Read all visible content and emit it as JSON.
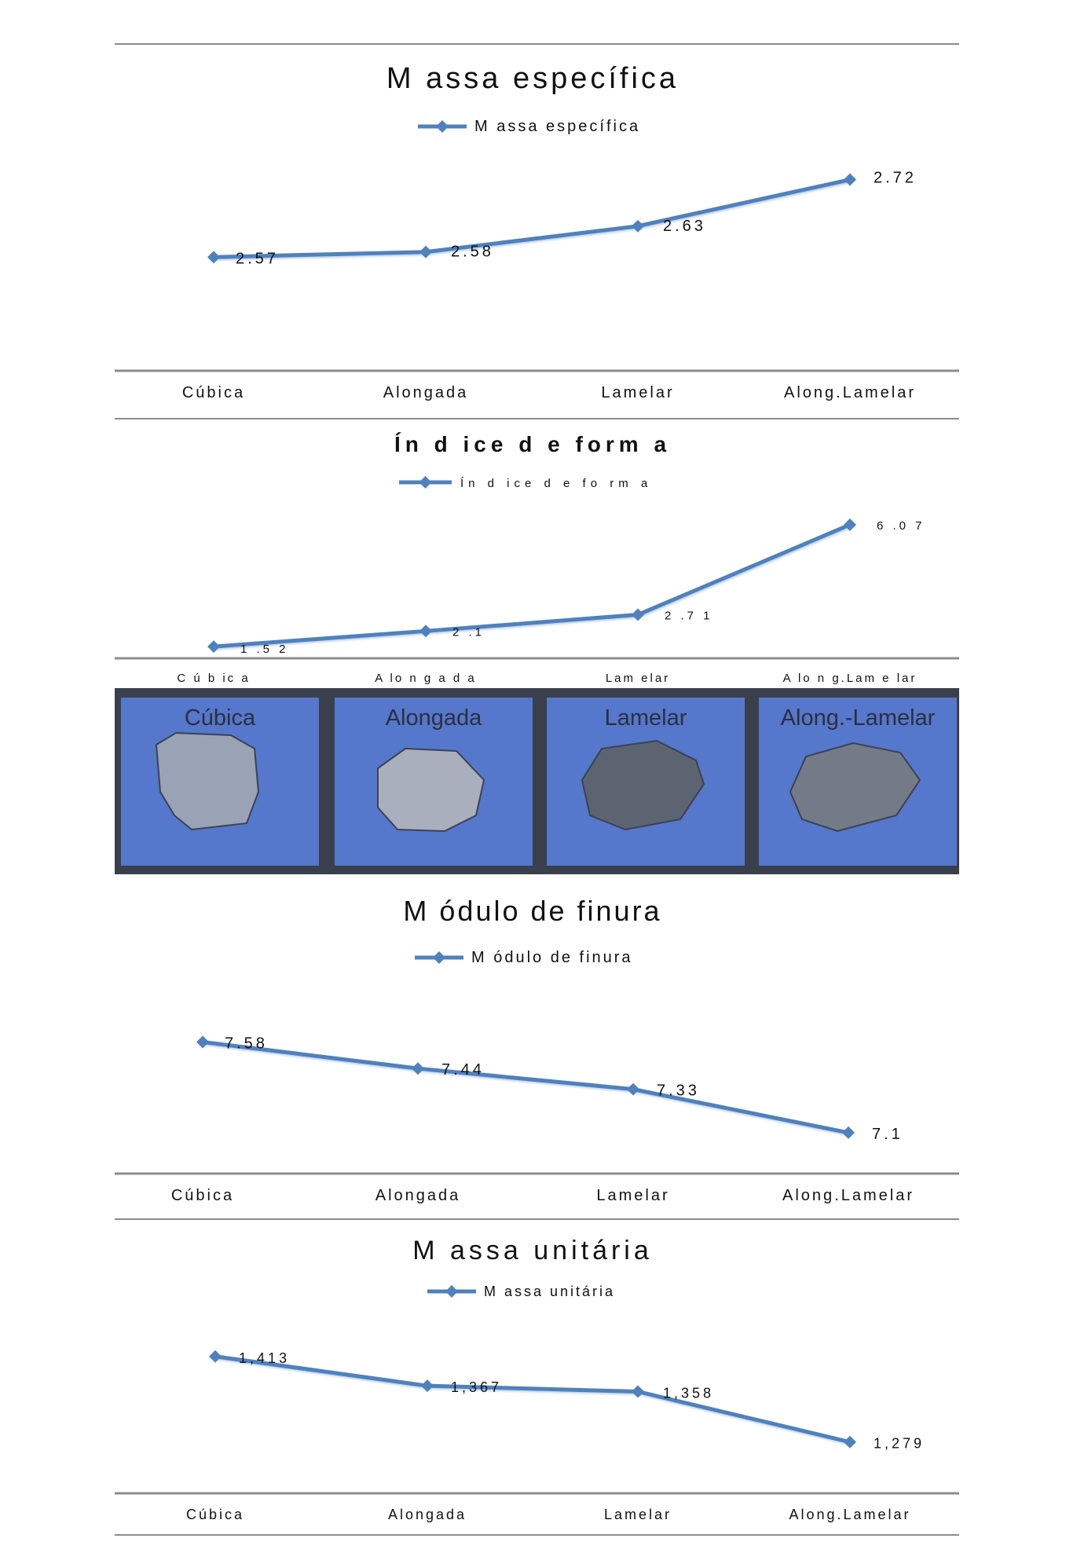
{
  "chart_data": [
    {
      "type": "line",
      "title": "M assa específica",
      "categories": [
        "Cúbica",
        "Alongada",
        "Lamelar",
        "Along.Lamelar"
      ],
      "series": [
        {
          "name": "M assa específica",
          "values": [
            2.57,
            2.58,
            2.63,
            2.72
          ]
        }
      ],
      "data_labels": [
        "2.57",
        "2.58",
        "2.63",
        "2.72"
      ],
      "ylim": [
        2.42,
        2.8
      ],
      "legend": "top",
      "grid": false
    },
    {
      "type": "line",
      "title": "Ín d ice d e form a",
      "categories": [
        "C ú b ic a",
        "A lo n g a d a",
        "Lam elar",
        "A lo n g.Lam e lar"
      ],
      "series": [
        {
          "name": "Ín d ice d e fo rm a",
          "values": [
            1.52,
            2.1,
            2.71,
            6.07
          ]
        }
      ],
      "data_labels": [
        "1 .5 2",
        "2 .1",
        "2 .7 1",
        "6 .0 7"
      ],
      "ylim": [
        1.2,
        7.3
      ],
      "legend": "top",
      "grid": false
    },
    {
      "type": "line",
      "title": "M ódulo de finura",
      "categories": [
        "Cúbica",
        "Alongada",
        "Lamelar",
        "Along.Lamelar"
      ],
      "series": [
        {
          "name": "M ódulo de finura",
          "values": [
            7.58,
            7.44,
            7.33,
            7.1
          ]
        }
      ],
      "data_labels": [
        "7.58",
        "7.44",
        "7.33",
        "7.1"
      ],
      "ylim": [
        6.9,
        7.94
      ],
      "legend": "top",
      "grid": false
    },
    {
      "type": "line",
      "title": "M assa unitária",
      "categories": [
        "Cúbica",
        "Alongada",
        "Lamelar",
        "Along.Lamelar"
      ],
      "series": [
        {
          "name": "M assa unitária",
          "values": [
            1.413,
            1.367,
            1.358,
            1.279
          ]
        }
      ],
      "data_labels": [
        "1,413",
        "1,367",
        "1,358",
        "1,279"
      ],
      "ylim": [
        1.2,
        1.5
      ],
      "legend": "top",
      "grid": false
    }
  ],
  "photos": [
    {
      "label": "Cúbica",
      "rock": "rock-cubica-photo"
    },
    {
      "label": "Alongada",
      "rock": "rock-alongada-photo"
    },
    {
      "label": "Lamelar",
      "rock": "rock-lamelar-photo"
    },
    {
      "label": "Along.-Lamelar",
      "rock": "rock-along-lamelar-photo"
    }
  ],
  "colors": {
    "line": "#4f81bd",
    "axis": "#8c8c8c",
    "photo_bg": "#5577cc",
    "frame": "#3a3f4c"
  }
}
